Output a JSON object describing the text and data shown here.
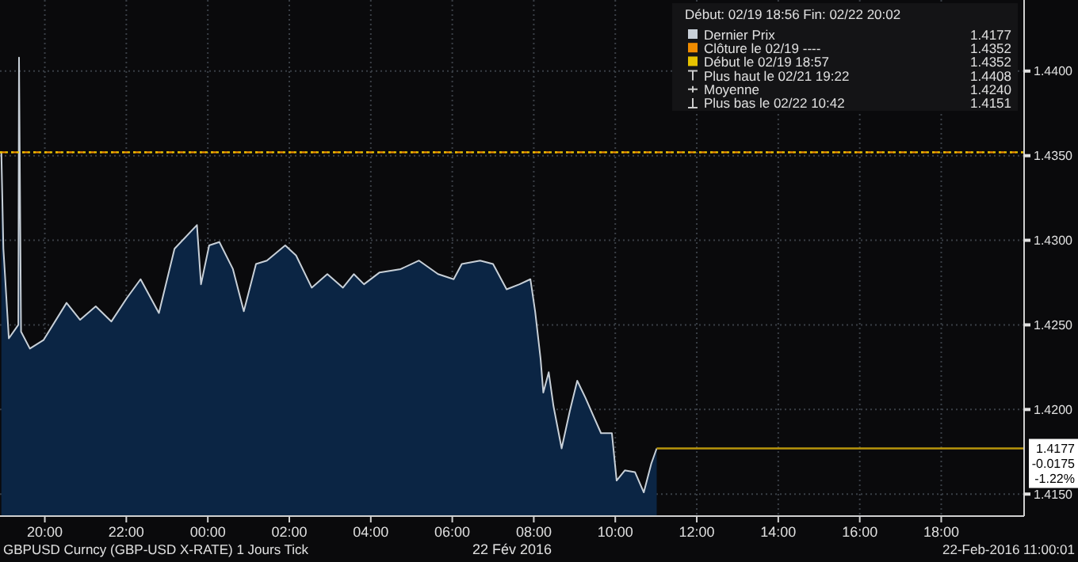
{
  "chart_data": {
    "type": "area",
    "legend_title": "Début: 02/19 18:56 Fin: 02/22 20:02",
    "xlabel": "22 Fév 2016",
    "x": [
      "2016-02-21T18:56",
      "2016-02-21T18:59",
      "2016-02-21T19:07",
      "2016-02-21T19:21",
      "2016-02-21T19:22",
      "2016-02-21T19:25",
      "2016-02-21T19:38",
      "2016-02-21T19:58",
      "2016-02-21T20:32",
      "2016-02-21T20:52",
      "2016-02-21T21:15",
      "2016-02-21T21:38",
      "2016-02-21T22:01",
      "2016-02-21T22:21",
      "2016-02-21T22:48",
      "2016-02-21T23:11",
      "2016-02-21T23:44",
      "2016-02-21T23:50",
      "2016-02-22T00:02",
      "2016-02-22T00:17",
      "2016-02-22T00:37",
      "2016-02-22T00:53",
      "2016-02-22T01:11",
      "2016-02-22T01:27",
      "2016-02-22T01:54",
      "2016-02-22T02:10",
      "2016-02-22T02:33",
      "2016-02-22T02:56",
      "2016-02-22T03:19",
      "2016-02-22T03:35",
      "2016-02-22T03:50",
      "2016-02-22T04:13",
      "2016-02-22T04:44",
      "2016-02-22T05:11",
      "2016-02-22T05:39",
      "2016-02-22T06:02",
      "2016-02-22T06:14",
      "2016-02-22T06:41",
      "2016-02-22T07:00",
      "2016-02-22T07:20",
      "2016-02-22T07:39",
      "2016-02-22T07:55",
      "2016-02-22T08:02",
      "2016-02-22T08:10",
      "2016-02-22T08:14",
      "2016-02-22T08:22",
      "2016-02-22T08:29",
      "2016-02-22T08:41",
      "2016-02-22T08:53",
      "2016-02-22T09:04",
      "2016-02-22T09:16",
      "2016-02-22T09:28",
      "2016-02-22T09:39",
      "2016-02-22T09:55",
      "2016-02-22T10:02",
      "2016-02-22T10:14",
      "2016-02-22T10:29",
      "2016-02-22T10:42",
      "2016-02-22T10:53",
      "2016-02-22T11:01"
    ],
    "series": [
      {
        "name": "Dernier Prix",
        "color": "#c8d0d8",
        "values": [
          1.4352,
          1.4295,
          1.4242,
          1.425,
          1.4408,
          1.4246,
          1.4236,
          1.4241,
          1.4263,
          1.4253,
          1.4261,
          1.4252,
          1.4266,
          1.4277,
          1.4257,
          1.4295,
          1.4309,
          1.4274,
          1.4297,
          1.4299,
          1.4283,
          1.4258,
          1.4286,
          1.4288,
          1.4297,
          1.4291,
          1.4272,
          1.428,
          1.4272,
          1.428,
          1.4274,
          1.4281,
          1.4283,
          1.4288,
          1.428,
          1.4277,
          1.4286,
          1.4288,
          1.4286,
          1.4271,
          1.4274,
          1.4277,
          1.4258,
          1.423,
          1.421,
          1.4222,
          1.4202,
          1.4177,
          1.4199,
          1.4217,
          1.4207,
          1.4196,
          1.4186,
          1.4186,
          1.4158,
          1.4164,
          1.4163,
          1.4151,
          1.4168,
          1.4177
        ]
      }
    ],
    "xlim": [
      "2016-02-21T18:54",
      "2016-02-22T20:02"
    ],
    "xticks": [
      {
        "value": "2016-02-21T20:00",
        "label": "20:00"
      },
      {
        "value": "2016-02-21T22:00",
        "label": "22:00"
      },
      {
        "value": "2016-02-22T00:00",
        "label": "00:00"
      },
      {
        "value": "2016-02-22T02:00",
        "label": "02:00"
      },
      {
        "value": "2016-02-22T04:00",
        "label": "04:00"
      },
      {
        "value": "2016-02-22T06:00",
        "label": "06:00"
      },
      {
        "value": "2016-02-22T08:00",
        "label": "08:00"
      },
      {
        "value": "2016-02-22T10:00",
        "label": "10:00"
      },
      {
        "value": "2016-02-22T12:00",
        "label": "12:00"
      },
      {
        "value": "2016-02-22T14:00",
        "label": "14:00"
      },
      {
        "value": "2016-02-22T16:00",
        "label": "16:00"
      },
      {
        "value": "2016-02-22T18:00",
        "label": "18:00"
      }
    ],
    "ylim": [
      1.4137,
      1.4442
    ],
    "yticks": [
      {
        "value": 1.415,
        "label": "1.4150"
      },
      {
        "value": 1.42,
        "label": "1.4200"
      },
      {
        "value": 1.425,
        "label": "1.4250"
      },
      {
        "value": 1.43,
        "label": "1.4300"
      },
      {
        "value": 1.435,
        "label": "1.4350"
      },
      {
        "value": 1.44,
        "label": "1.4400"
      }
    ],
    "grid": true,
    "legend": "top right",
    "ref_lines": [
      {
        "axis": "y",
        "value": 1.4352,
        "color": "#f08c00",
        "line_style": "dashed"
      },
      {
        "axis": "y",
        "value": 1.4352,
        "color": "#e6c200",
        "line_style": "dotted"
      },
      {
        "axis": "y",
        "value": 1.4177,
        "label": "1.4177",
        "color": "#b8960c",
        "line_style": "solid"
      }
    ],
    "annotations": [
      "1.4177",
      "Clôture le 02/19 ----",
      "1.4352",
      "Début le 02/19 18:57",
      "1.4352",
      "Plus haut le 02/21 19:22",
      "1.4408",
      "Moyenne",
      "1.4240",
      "Plus bas le 02/22 10:42",
      "1.4151",
      "-0.0175",
      "-1.22%",
      "GBPUSD Curncy (GBP-USD X-RATE) 1 Jours  Tick",
      "22-Feb-2016 11:00:01"
    ]
  }
}
